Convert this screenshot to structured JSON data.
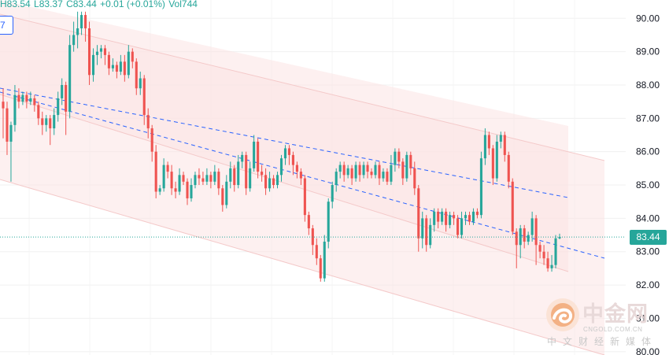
{
  "header": {
    "high": "H83.54",
    "low": "L83.37",
    "close": "C83.44",
    "change": "+0.01 (+0.01%)",
    "volume": "Vol744",
    "left_tag": "7"
  },
  "price_tag": "83.44",
  "watermark": {
    "name": "中金网",
    "url": "CNGOLD.COM.CN",
    "sub": "中文财经新媒体"
  },
  "colors": {
    "up": "#26a69a",
    "down": "#ef5350",
    "channel_fill": "#fbe4e4",
    "trendline": "#2962ff"
  },
  "chart_data": {
    "type": "candlestick",
    "ylim": [
      79.9,
      90.55
    ],
    "yticks": [
      "90.00",
      "89.00",
      "88.00",
      "87.00",
      "86.00",
      "85.00",
      "84.00",
      "83.00",
      "82.00",
      "81.00",
      "80.00"
    ],
    "last_price": 83.44,
    "candles": [
      [
        87.5,
        87.3,
        87.9,
        86.4
      ],
      [
        87.3,
        86.3,
        87.5,
        85.9
      ],
      [
        86.3,
        86.8,
        86.9,
        85.1
      ],
      [
        86.8,
        87.7,
        88.0,
        86.6
      ],
      [
        87.7,
        87.5,
        87.9,
        87.3
      ],
      [
        87.5,
        87.7,
        87.8,
        87.4
      ],
      [
        87.7,
        87.5,
        87.8,
        87.3
      ],
      [
        87.5,
        87.6,
        87.8,
        87.4
      ],
      [
        87.6,
        87.4,
        87.7,
        87.2
      ],
      [
        87.4,
        87.0,
        87.5,
        86.8
      ],
      [
        87.0,
        86.8,
        87.2,
        86.5
      ],
      [
        86.8,
        87.0,
        87.1,
        86.6
      ],
      [
        87.0,
        86.7,
        87.1,
        86.2
      ],
      [
        86.7,
        87.1,
        87.3,
        86.5
      ],
      [
        87.1,
        87.6,
        87.8,
        86.9
      ],
      [
        87.6,
        88.0,
        88.2,
        87.4
      ],
      [
        88.0,
        87.2,
        88.1,
        86.5
      ],
      [
        87.2,
        89.2,
        89.5,
        87.0
      ],
      [
        89.2,
        89.5,
        89.9,
        89.0
      ],
      [
        89.5,
        89.7,
        90.2,
        89.1
      ],
      [
        89.7,
        90.1,
        90.2,
        89.5
      ],
      [
        90.1,
        89.7,
        90.2,
        89.3
      ],
      [
        89.7,
        88.3,
        89.9,
        88.0
      ],
      [
        88.3,
        88.9,
        89.1,
        88.1
      ],
      [
        88.9,
        89.0,
        89.2,
        88.6
      ],
      [
        89.0,
        89.1,
        89.2,
        88.8
      ],
      [
        89.1,
        88.9,
        89.2,
        88.6
      ],
      [
        88.9,
        88.5,
        89.0,
        88.3
      ],
      [
        88.5,
        88.6,
        88.8,
        88.4
      ],
      [
        88.6,
        88.4,
        88.7,
        88.2
      ],
      [
        88.4,
        88.7,
        88.9,
        88.3
      ],
      [
        88.7,
        88.3,
        88.9,
        88.1
      ],
      [
        88.3,
        89.0,
        89.2,
        88.2
      ],
      [
        89.0,
        88.7,
        89.1,
        88.5
      ],
      [
        88.7,
        87.9,
        88.8,
        87.7
      ],
      [
        87.9,
        88.2,
        88.4,
        87.7
      ],
      [
        88.2,
        87.1,
        88.3,
        86.8
      ],
      [
        87.1,
        86.7,
        87.3,
        86.4
      ],
      [
        86.7,
        86.0,
        86.8,
        85.7
      ],
      [
        86.0,
        84.8,
        86.2,
        84.6
      ],
      [
        84.8,
        84.9,
        85.0,
        84.7
      ],
      [
        84.9,
        85.6,
        85.8,
        84.8
      ],
      [
        85.6,
        85.4,
        85.7,
        85.2
      ],
      [
        85.4,
        84.9,
        85.6,
        84.7
      ],
      [
        84.9,
        84.8,
        85.1,
        84.6
      ],
      [
        84.8,
        85.3,
        85.5,
        84.7
      ],
      [
        85.3,
        85.1,
        85.4,
        85.0
      ],
      [
        85.1,
        84.6,
        85.2,
        84.4
      ],
      [
        84.6,
        85.0,
        85.2,
        84.5
      ],
      [
        85.0,
        85.3,
        85.4,
        84.9
      ],
      [
        85.3,
        85.2,
        85.5,
        85.0
      ],
      [
        85.2,
        85.1,
        85.4,
        85.0
      ],
      [
        85.1,
        85.3,
        85.5,
        85.0
      ],
      [
        85.3,
        85.1,
        85.4,
        84.9
      ],
      [
        85.1,
        85.4,
        85.6,
        85.0
      ],
      [
        85.4,
        84.9,
        85.5,
        84.7
      ],
      [
        84.9,
        84.4,
        85.0,
        84.2
      ],
      [
        84.4,
        85.1,
        85.3,
        84.3
      ],
      [
        85.1,
        85.5,
        85.7,
        84.9
      ],
      [
        85.5,
        85.0,
        85.6,
        84.8
      ],
      [
        85.0,
        85.7,
        85.9,
        84.9
      ],
      [
        85.7,
        85.9,
        86.0,
        85.5
      ],
      [
        85.9,
        84.9,
        86.0,
        84.7
      ],
      [
        84.9,
        85.5,
        85.7,
        84.8
      ],
      [
        85.5,
        86.3,
        86.5,
        85.4
      ],
      [
        86.3,
        85.4,
        86.4,
        85.2
      ],
      [
        85.4,
        85.3,
        85.6,
        85.1
      ],
      [
        85.3,
        84.9,
        85.5,
        84.7
      ],
      [
        84.9,
        85.2,
        85.4,
        84.8
      ],
      [
        85.2,
        85.0,
        85.3,
        84.9
      ],
      [
        85.0,
        85.3,
        85.4,
        84.9
      ],
      [
        85.3,
        85.8,
        85.9,
        85.1
      ],
      [
        85.8,
        86.1,
        86.2,
        85.6
      ],
      [
        86.1,
        85.9,
        86.2,
        85.6
      ],
      [
        85.9,
        85.6,
        86.0,
        85.3
      ],
      [
        85.6,
        85.4,
        85.7,
        85.2
      ],
      [
        85.4,
        85.2,
        85.5,
        85.0
      ],
      [
        85.2,
        84.1,
        85.3,
        83.9
      ],
      [
        84.1,
        83.7,
        84.2,
        83.5
      ],
      [
        83.7,
        83.2,
        83.8,
        82.9
      ],
      [
        83.2,
        82.8,
        83.4,
        82.6
      ],
      [
        82.8,
        82.2,
        82.9,
        82.1
      ],
      [
        82.2,
        83.3,
        83.5,
        82.1
      ],
      [
        83.3,
        84.5,
        84.6,
        83.1
      ],
      [
        84.5,
        85.0,
        85.1,
        84.3
      ],
      [
        85.0,
        85.4,
        85.5,
        84.8
      ],
      [
        85.4,
        85.6,
        85.7,
        85.2
      ],
      [
        85.6,
        85.3,
        85.7,
        85.1
      ],
      [
        85.3,
        85.5,
        85.6,
        85.2
      ],
      [
        85.5,
        85.2,
        85.6,
        85.0
      ],
      [
        85.2,
        85.6,
        85.7,
        85.1
      ],
      [
        85.6,
        85.3,
        85.7,
        85.1
      ],
      [
        85.3,
        85.6,
        85.7,
        85.2
      ],
      [
        85.6,
        85.4,
        85.7,
        85.2
      ],
      [
        85.4,
        85.3,
        85.5,
        85.2
      ],
      [
        85.3,
        85.6,
        85.7,
        85.2
      ],
      [
        85.6,
        85.2,
        85.7,
        85.0
      ],
      [
        85.2,
        85.4,
        85.5,
        85.1
      ],
      [
        85.4,
        85.1,
        85.5,
        85.0
      ],
      [
        85.1,
        85.6,
        85.9,
        85.0
      ],
      [
        85.6,
        86.0,
        86.1,
        85.4
      ],
      [
        86.0,
        85.7,
        86.1,
        85.5
      ],
      [
        85.7,
        85.2,
        85.8,
        85.0
      ],
      [
        85.2,
        85.9,
        86.0,
        85.1
      ],
      [
        85.9,
        85.5,
        86.0,
        85.3
      ],
      [
        85.5,
        84.9,
        85.7,
        84.7
      ],
      [
        84.9,
        83.4,
        85.0,
        83.0
      ],
      [
        83.4,
        84.0,
        84.2,
        83.1
      ],
      [
        84.0,
        83.2,
        84.1,
        83.0
      ],
      [
        83.2,
        83.8,
        84.0,
        83.1
      ],
      [
        83.8,
        84.2,
        84.3,
        83.6
      ],
      [
        84.2,
        83.9,
        84.3,
        83.7
      ],
      [
        83.9,
        84.2,
        84.3,
        83.8
      ],
      [
        84.2,
        83.8,
        84.3,
        83.6
      ],
      [
        83.8,
        84.1,
        84.2,
        83.7
      ],
      [
        84.1,
        84.0,
        84.2,
        83.8
      ],
      [
        84.0,
        83.5,
        84.1,
        83.4
      ],
      [
        83.5,
        84.0,
        84.2,
        83.4
      ],
      [
        84.0,
        84.1,
        84.2,
        83.8
      ],
      [
        84.1,
        83.9,
        84.2,
        83.8
      ],
      [
        83.9,
        84.2,
        84.3,
        83.8
      ],
      [
        84.2,
        84.1,
        84.3,
        84.0
      ],
      [
        84.1,
        85.8,
        86.0,
        84.0
      ],
      [
        85.8,
        86.5,
        86.7,
        85.6
      ],
      [
        86.5,
        86.1,
        86.6,
        85.9
      ],
      [
        86.1,
        85.2,
        86.2,
        85.0
      ],
      [
        85.2,
        86.3,
        86.5,
        85.1
      ],
      [
        86.3,
        86.5,
        86.6,
        86.1
      ],
      [
        86.5,
        85.9,
        86.6,
        85.7
      ],
      [
        85.9,
        85.1,
        86.0,
        84.9
      ],
      [
        85.1,
        83.6,
        85.2,
        83.5
      ],
      [
        83.6,
        83.2,
        83.7,
        82.5
      ],
      [
        83.2,
        83.7,
        83.8,
        82.8
      ],
      [
        83.7,
        83.3,
        83.8,
        83.1
      ],
      [
        83.3,
        83.5,
        83.6,
        83.2
      ],
      [
        83.5,
        84.0,
        84.2,
        83.3
      ],
      [
        84.0,
        83.2,
        84.1,
        82.6
      ],
      [
        83.2,
        83.0,
        83.3,
        82.8
      ],
      [
        83.0,
        82.8,
        83.2,
        82.6
      ],
      [
        82.8,
        82.5,
        83.0,
        82.4
      ],
      [
        82.5,
        82.6,
        82.9,
        82.4
      ],
      [
        82.6,
        83.4,
        83.5,
        82.5
      ],
      [
        83.4,
        83.44,
        83.54,
        83.37
      ]
    ]
  }
}
